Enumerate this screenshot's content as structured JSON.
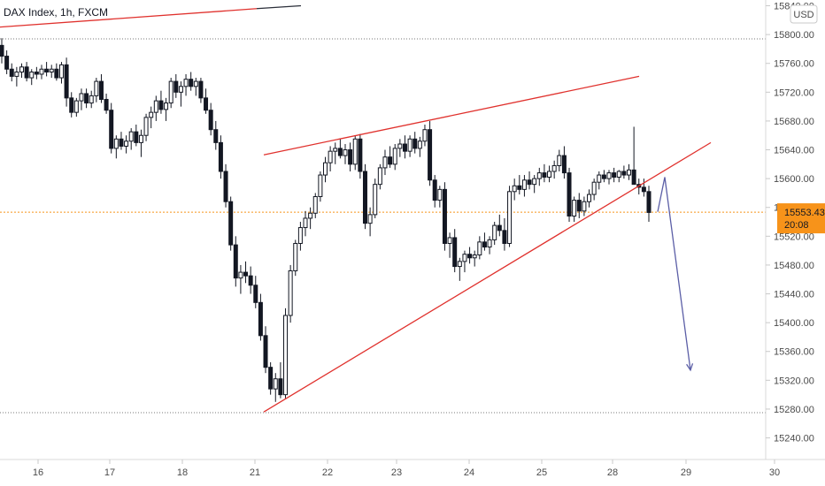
{
  "chart_data": {
    "type": "candlestick",
    "title": "DAX Index, 1h, FXCM",
    "currency": "USD",
    "x_ticks": [
      "16",
      "17",
      "18",
      "21",
      "22",
      "23",
      "24",
      "25",
      "28",
      "29",
      "30"
    ],
    "y_ticks": [
      15240,
      15280,
      15320,
      15360,
      15400,
      15440,
      15480,
      15520,
      15560,
      15600,
      15640,
      15680,
      15720,
      15760,
      15800,
      15840
    ],
    "ylim": [
      15210,
      15848
    ],
    "last_price": "15553.43",
    "countdown": "20:08",
    "horizontal_levels": [
      15794,
      15275
    ],
    "candles_ohlc": [
      [
        15785,
        15795,
        15760,
        15770
      ],
      [
        15770,
        15778,
        15745,
        15752
      ],
      [
        15752,
        15760,
        15735,
        15742
      ],
      [
        15742,
        15755,
        15728,
        15748
      ],
      [
        15748,
        15760,
        15740,
        15755
      ],
      [
        15755,
        15762,
        15735,
        15740
      ],
      [
        15740,
        15752,
        15730,
        15748
      ],
      [
        15748,
        15755,
        15738,
        15745
      ],
      [
        15745,
        15758,
        15738,
        15752
      ],
      [
        15752,
        15762,
        15742,
        15748
      ],
      [
        15748,
        15758,
        15740,
        15752
      ],
      [
        15752,
        15760,
        15736,
        15740
      ],
      [
        15740,
        15762,
        15732,
        15758
      ],
      [
        15758,
        15768,
        15700,
        15712
      ],
      [
        15712,
        15720,
        15685,
        15692
      ],
      [
        15692,
        15712,
        15686,
        15708
      ],
      [
        15708,
        15725,
        15695,
        15718
      ],
      [
        15718,
        15725,
        15698,
        15705
      ],
      [
        15705,
        15722,
        15698,
        15715
      ],
      [
        15715,
        15740,
        15706,
        15735
      ],
      [
        15735,
        15745,
        15705,
        15710
      ],
      [
        15710,
        15718,
        15690,
        15695
      ],
      [
        15695,
        15705,
        15635,
        15642
      ],
      [
        15642,
        15660,
        15628,
        15655
      ],
      [
        15655,
        15665,
        15640,
        15645
      ],
      [
        15645,
        15660,
        15635,
        15652
      ],
      [
        15652,
        15670,
        15640,
        15665
      ],
      [
        15665,
        15675,
        15645,
        15650
      ],
      [
        15650,
        15668,
        15630,
        15660
      ],
      [
        15660,
        15690,
        15652,
        15685
      ],
      [
        15685,
        15700,
        15670,
        15692
      ],
      [
        15692,
        15715,
        15680,
        15708
      ],
      [
        15708,
        15722,
        15690,
        15696
      ],
      [
        15696,
        15712,
        15680,
        15705
      ],
      [
        15705,
        15740,
        15698,
        15735
      ],
      [
        15735,
        15745,
        15712,
        15720
      ],
      [
        15720,
        15735,
        15700,
        15728
      ],
      [
        15728,
        15745,
        15715,
        15738
      ],
      [
        15738,
        15748,
        15722,
        15728
      ],
      [
        15728,
        15740,
        15715,
        15735
      ],
      [
        15735,
        15740,
        15705,
        15712
      ],
      [
        15712,
        15725,
        15690,
        15695
      ],
      [
        15695,
        15705,
        15660,
        15668
      ],
      [
        15668,
        15680,
        15640,
        15650
      ],
      [
        15650,
        15660,
        15600,
        15610
      ],
      [
        15610,
        15620,
        15560,
        15568
      ],
      [
        15568,
        15575,
        15500,
        15508
      ],
      [
        15508,
        15520,
        15450,
        15462
      ],
      [
        15462,
        15480,
        15440,
        15470
      ],
      [
        15470,
        15485,
        15455,
        15465
      ],
      [
        15465,
        15478,
        15440,
        15452
      ],
      [
        15452,
        15465,
        15420,
        15428
      ],
      [
        15428,
        15440,
        15375,
        15382
      ],
      [
        15382,
        15395,
        15330,
        15338
      ],
      [
        15338,
        15345,
        15300,
        15308
      ],
      [
        15308,
        15330,
        15290,
        15322
      ],
      [
        15322,
        15345,
        15295,
        15300
      ],
      [
        15300,
        15420,
        15295,
        15410
      ],
      [
        15410,
        15480,
        15400,
        15472
      ],
      [
        15472,
        15515,
        15465,
        15510
      ],
      [
        15510,
        15540,
        15500,
        15532
      ],
      [
        15532,
        15555,
        15520,
        15545
      ],
      [
        15545,
        15560,
        15530,
        15552
      ],
      [
        15552,
        15580,
        15545,
        15575
      ],
      [
        15575,
        15610,
        15568,
        15605
      ],
      [
        15605,
        15630,
        15595,
        15622
      ],
      [
        15622,
        15645,
        15610,
        15638
      ],
      [
        15638,
        15650,
        15620,
        15642
      ],
      [
        15642,
        15655,
        15628,
        15632
      ],
      [
        15632,
        15648,
        15620,
        15640
      ],
      [
        15640,
        15650,
        15610,
        15620
      ],
      [
        15620,
        15660,
        15612,
        15655
      ],
      [
        15655,
        15662,
        15600,
        15610
      ],
      [
        15610,
        15620,
        15530,
        15538
      ],
      [
        15538,
        15560,
        15520,
        15550
      ],
      [
        15550,
        15600,
        15545,
        15592
      ],
      [
        15592,
        15620,
        15585,
        15615
      ],
      [
        15615,
        15640,
        15605,
        15630
      ],
      [
        15630,
        15645,
        15615,
        15620
      ],
      [
        15620,
        15648,
        15612,
        15642
      ],
      [
        15642,
        15655,
        15630,
        15648
      ],
      [
        15648,
        15660,
        15628,
        15638
      ],
      [
        15638,
        15660,
        15630,
        15655
      ],
      [
        15655,
        15665,
        15635,
        15642
      ],
      [
        15642,
        15658,
        15630,
        15652
      ],
      [
        15652,
        15675,
        15645,
        15668
      ],
      [
        15668,
        15680,
        15590,
        15598
      ],
      [
        15598,
        15605,
        15560,
        15570
      ],
      [
        15570,
        15590,
        15560,
        15585
      ],
      [
        15585,
        15595,
        15500,
        15510
      ],
      [
        15510,
        15525,
        15490,
        15518
      ],
      [
        15518,
        15530,
        15470,
        15478
      ],
      [
        15478,
        15490,
        15458,
        15485
      ],
      [
        15485,
        15500,
        15470,
        15495
      ],
      [
        15495,
        15505,
        15482,
        15490
      ],
      [
        15490,
        15500,
        15478,
        15494
      ],
      [
        15494,
        15520,
        15488,
        15512
      ],
      [
        15512,
        15525,
        15500,
        15505
      ],
      [
        15505,
        15520,
        15495,
        15515
      ],
      [
        15515,
        15540,
        15508,
        15535
      ],
      [
        15535,
        15550,
        15520,
        15528
      ],
      [
        15528,
        15545,
        15500,
        15510
      ],
      [
        15510,
        15590,
        15505,
        15582
      ],
      [
        15582,
        15600,
        15570,
        15590
      ],
      [
        15590,
        15605,
        15578,
        15585
      ],
      [
        15585,
        15605,
        15575,
        15598
      ],
      [
        15598,
        15610,
        15585,
        15592
      ],
      [
        15592,
        15605,
        15580,
        15600
      ],
      [
        15600,
        15615,
        15590,
        15608
      ],
      [
        15608,
        15620,
        15595,
        15602
      ],
      [
        15602,
        15618,
        15595,
        15610
      ],
      [
        15610,
        15625,
        15600,
        15618
      ],
      [
        15618,
        15640,
        15610,
        15632
      ],
      [
        15632,
        15645,
        15600,
        15608
      ],
      [
        15608,
        15615,
        15540,
        15548
      ],
      [
        15548,
        15575,
        15540,
        15570
      ],
      [
        15570,
        15580,
        15545,
        15555
      ],
      [
        15555,
        15575,
        15548,
        15568
      ],
      [
        15568,
        15585,
        15560,
        15578
      ],
      [
        15578,
        15600,
        15570,
        15595
      ],
      [
        15595,
        15610,
        15585,
        15605
      ],
      [
        15605,
        15612,
        15595,
        15600
      ],
      [
        15600,
        15612,
        15592,
        15608
      ],
      [
        15608,
        15615,
        15595,
        15602
      ],
      [
        15602,
        15612,
        15595,
        15610
      ],
      [
        15610,
        15618,
        15600,
        15605
      ],
      [
        15605,
        15620,
        15598,
        15612
      ],
      [
        15612,
        15672,
        15600,
        15592
      ],
      [
        15592,
        15600,
        15578,
        15588
      ],
      [
        15588,
        15600,
        15575,
        15582
      ],
      [
        15582,
        15590,
        15540,
        15553
      ]
    ],
    "trendlines": [
      {
        "color": "#e0312d",
        "points": [
          [
            -5,
            15810
          ],
          [
            290,
            15836
          ]
        ]
      },
      {
        "color": "#2a2e39",
        "points": [
          [
            290,
            15836
          ],
          [
            340,
            15840
          ]
        ]
      },
      {
        "color": "#e0312d",
        "points": [
          [
            298,
            15633
          ],
          [
            722,
            15742
          ]
        ]
      },
      {
        "color": "#e0312d",
        "points": [
          [
            298,
            15276
          ],
          [
            803,
            15650
          ]
        ]
      }
    ],
    "projection_arrow": {
      "color": "#5b5ea6",
      "points": [
        [
          743,
          15554
        ],
        [
          751,
          15602
        ],
        [
          780,
          15334
        ]
      ]
    }
  }
}
